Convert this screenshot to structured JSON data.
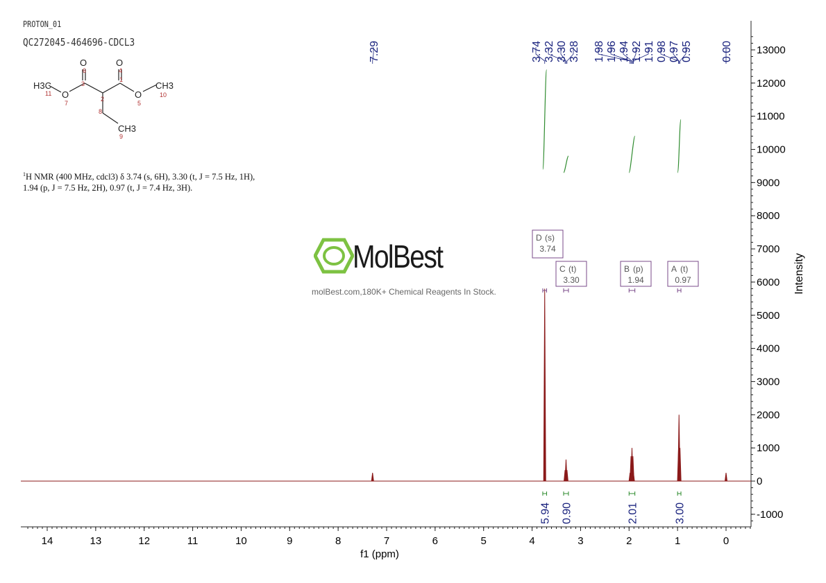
{
  "header": {
    "experiment": "PROTON_01",
    "sample": "QC272045-464696-CDCL3"
  },
  "structure": {
    "atoms": [
      "H3C",
      "O",
      "O",
      "O",
      "O",
      "CH3",
      "CH3"
    ],
    "atom_numbers": [
      "1",
      "2",
      "3",
      "4",
      "5",
      "6",
      "7",
      "8",
      "9",
      "10",
      "11"
    ]
  },
  "nmr_description": {
    "nucleus_sup": "1",
    "line1": "H NMR (400 MHz, cdcl3) δ 3.74 (s, 6H), 3.30 (t, J = 7.5 Hz, 1H),",
    "line2": "1.94 (p, J = 7.5 Hz, 2H), 0.97 (t, J = 7.4 Hz, 3H)."
  },
  "watermark": {
    "name": "MolBest",
    "tagline": "molBest.com,180K+ Chemical Reagents In Stock.",
    "color": "#7dc242"
  },
  "chart_data": {
    "type": "line",
    "xlabel": "f1 (ppm)",
    "ylabel": "Intensity",
    "xlim": [
      14.5,
      -0.5
    ],
    "ylim": [
      -1400,
      13600
    ],
    "x_reversed": true,
    "x_ticks": [
      "14",
      "13",
      "12",
      "11",
      "10",
      "9",
      "8",
      "7",
      "6",
      "5",
      "4",
      "3",
      "2",
      "1",
      "0"
    ],
    "y_ticks": [
      "13000",
      "12000",
      "11000",
      "10000",
      "9000",
      "8000",
      "7000",
      "6000",
      "5000",
      "4000",
      "3000",
      "2000",
      "1000",
      "0",
      "-1000"
    ],
    "peak_labels": [
      "7.29",
      "3.74",
      "3.32",
      "3.30",
      "3.28",
      "1.98",
      "1.96",
      "1.94",
      "1.92",
      "1.91",
      "0.98",
      "0.97",
      "0.95",
      "0.00"
    ],
    "peaks": [
      {
        "ppm": 7.29,
        "intensity": 250
      },
      {
        "ppm": 3.74,
        "intensity": 5800
      },
      {
        "ppm": 3.32,
        "intensity": 330
      },
      {
        "ppm": 3.3,
        "intensity": 650
      },
      {
        "ppm": 3.28,
        "intensity": 330
      },
      {
        "ppm": 1.98,
        "intensity": 250
      },
      {
        "ppm": 1.96,
        "intensity": 750
      },
      {
        "ppm": 1.94,
        "intensity": 1000
      },
      {
        "ppm": 1.92,
        "intensity": 750
      },
      {
        "ppm": 1.91,
        "intensity": 250
      },
      {
        "ppm": 0.98,
        "intensity": 1000
      },
      {
        "ppm": 0.97,
        "intensity": 2000
      },
      {
        "ppm": 0.95,
        "intensity": 1000
      },
      {
        "ppm": 0.0,
        "intensity": 250
      }
    ],
    "multiplets": [
      {
        "id": "D",
        "type": "(s)",
        "shift": "3.74",
        "range": [
          3.78,
          3.7
        ]
      },
      {
        "id": "C",
        "type": "(t)",
        "shift": "3.30",
        "range": [
          3.35,
          3.25
        ]
      },
      {
        "id": "B",
        "type": "(p)",
        "shift": "1.94",
        "range": [
          2.0,
          1.88
        ]
      },
      {
        "id": "A",
        "type": "(t)",
        "shift": "0.97",
        "range": [
          1.0,
          0.93
        ]
      }
    ],
    "integrals": [
      {
        "value": "5.94",
        "range": [
          3.78,
          3.7
        ],
        "curve": [
          9400,
          12400
        ]
      },
      {
        "value": "0.90",
        "range": [
          3.35,
          3.25
        ],
        "curve": [
          9300,
          9800
        ]
      },
      {
        "value": "2.01",
        "range": [
          2.0,
          1.88
        ],
        "curve": [
          9300,
          10400
        ]
      },
      {
        "value": "3.00",
        "range": [
          1.0,
          0.93
        ],
        "curve": [
          9300,
          10900
        ]
      }
    ],
    "colors": {
      "spectrum": "#8b1a1a",
      "labels": "#1a237e",
      "integral": "#2e8b2e",
      "multiplet_box": "#7a4a8a"
    },
    "grid": false
  }
}
